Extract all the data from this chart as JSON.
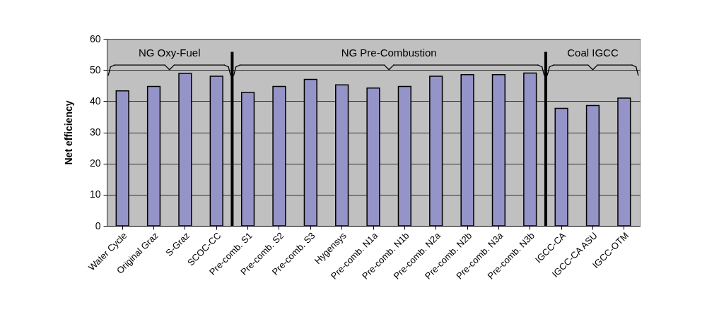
{
  "chart_data": {
    "type": "bar",
    "ylabel": "Net efficiency",
    "categories": [
      "Water Cycle",
      "Original Graz",
      "S-Graz",
      "SCOC-CC",
      "Pre-comb. S1",
      "Pre-comb. S2",
      "Pre-comb. S3",
      "Hygensys",
      "Pre-comb. N1a",
      "Pre-comb. N1b",
      "Pre-comb. N2a",
      "Pre-comb. N2b",
      "Pre-comb. N3a",
      "Pre-comb. N3b",
      "IGCC-CA",
      "IGCC-CA ASU",
      "IGCC-OTM"
    ],
    "values": [
      43.3,
      44.7,
      48.9,
      48,
      42.8,
      44.7,
      47,
      45.2,
      44.2,
      44.7,
      48,
      48.5,
      48.5,
      49,
      37.7,
      38.6,
      41
    ],
    "color": "#9494c8",
    "ylim": [
      0,
      60
    ],
    "yticks": [
      0,
      10,
      20,
      30,
      40,
      50,
      60
    ],
    "grid": "y",
    "bands": [
      {
        "axis": "x",
        "from": "Water Cycle",
        "to": "SCOC-CC",
        "label": "NG Oxy-Fuel",
        "color": "#c0c0c0"
      },
      {
        "axis": "x",
        "from": "Pre-comb. S1",
        "to": "Pre-comb. N3b",
        "label": "NG Pre-Combustion",
        "color": "#c0c0c0"
      },
      {
        "axis": "x",
        "from": "IGCC-CA",
        "to": "IGCC-OTM",
        "label": "Coal IGCC",
        "color": "#c0c0c0"
      }
    ]
  }
}
